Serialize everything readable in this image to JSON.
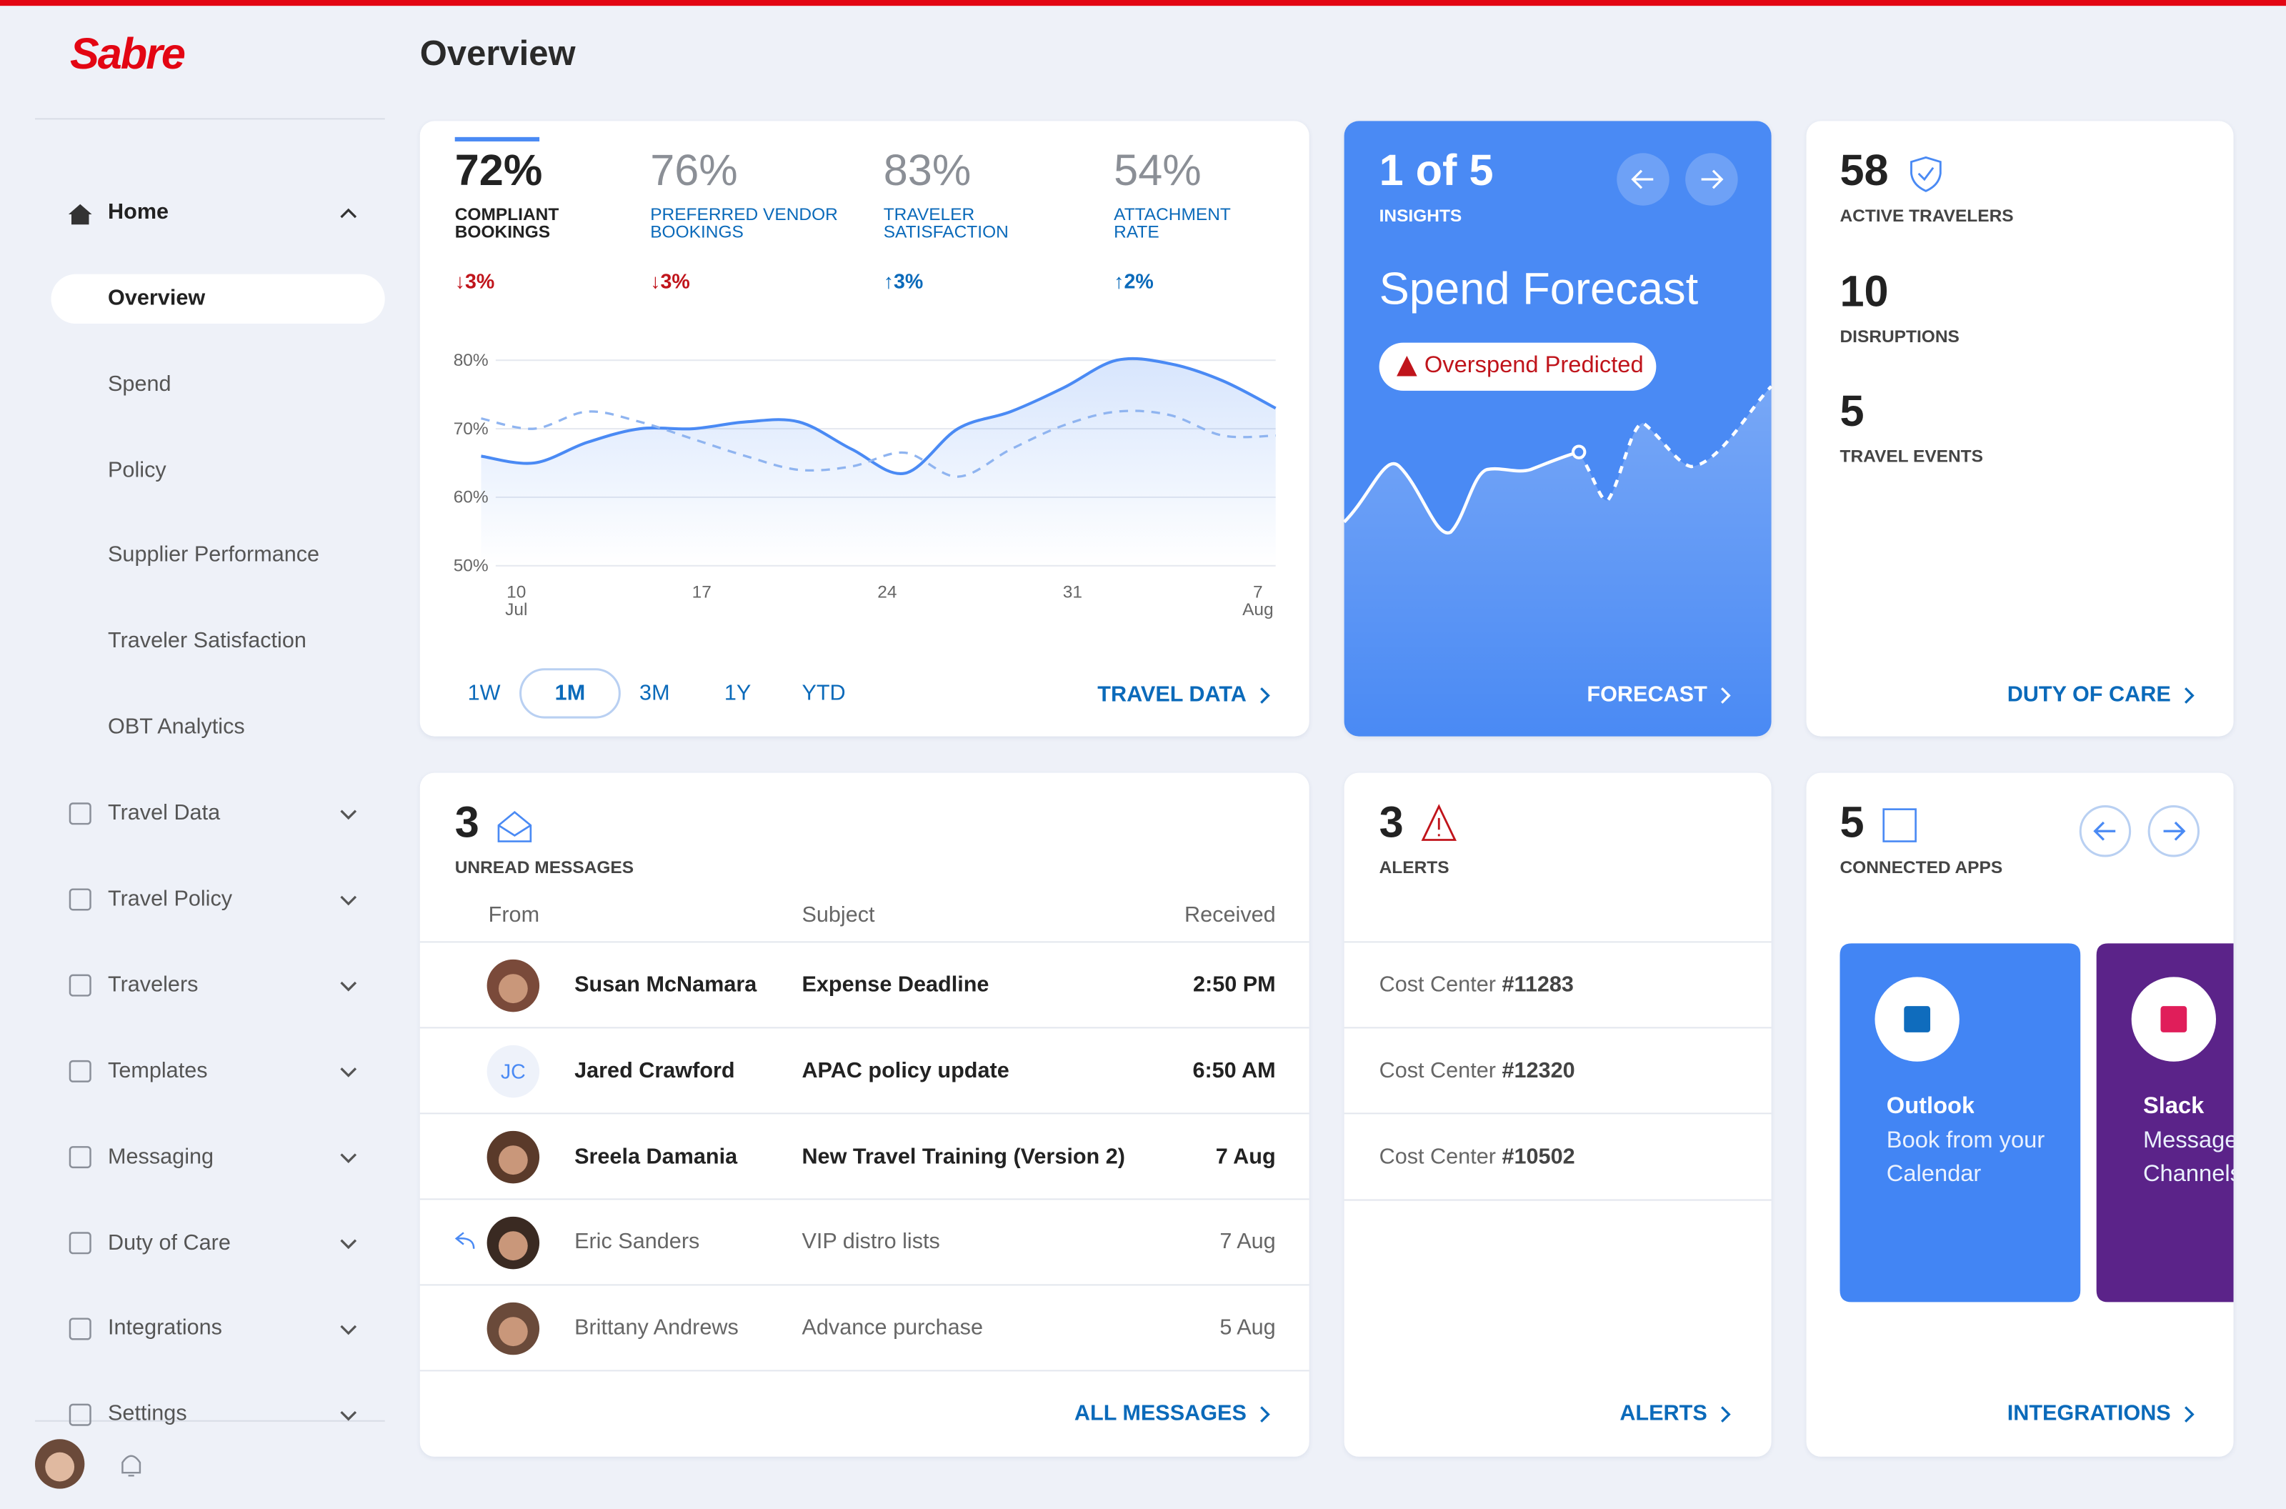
{
  "brand": "Sabre",
  "page_title": "Overview",
  "nav": {
    "home": "Home",
    "home_items": [
      "Overview",
      "Spend",
      "Policy",
      "Supplier Performance",
      "Traveler Satisfaction",
      "OBT Analytics"
    ],
    "active": "Overview",
    "sections": [
      "Travel Data",
      "Travel Policy",
      "Travelers",
      "Templates",
      "Messaging",
      "Duty of Care",
      "Integrations",
      "Settings"
    ]
  },
  "kpis": [
    {
      "value": "72%",
      "label": "COMPLIANT BOOKINGS",
      "change": "↓3%",
      "direction": "down"
    },
    {
      "value": "76%",
      "label": "PREFERRED VENDOR BOOKINGS",
      "change": "↓3%",
      "direction": "down"
    },
    {
      "value": "83%",
      "label": "TRAVELER SATISFACTION",
      "change": "↑3%",
      "direction": "up"
    },
    {
      "value": "54%",
      "label": "ATTACHMENT RATE",
      "change": "↑2%",
      "direction": "up"
    }
  ],
  "chart_data": {
    "type": "line",
    "x": [
      9,
      11,
      13,
      15,
      17,
      19,
      21,
      23,
      25,
      27,
      29,
      31,
      33,
      35,
      37,
      39
    ],
    "series": [
      {
        "color": "#4a8af4",
        "style": "solid",
        "values": [
          66,
          65,
          68,
          70,
          70,
          71,
          71,
          67,
          63.5,
          70,
          72.5,
          76,
          80,
          79.5,
          77,
          73
        ]
      },
      {
        "color": "#8fb4f0",
        "style": "dashed",
        "values": [
          71.5,
          70,
          72.5,
          71,
          68.5,
          66,
          64,
          64.5,
          66.5,
          63,
          67,
          70.5,
          72.5,
          72,
          69,
          69
        ]
      }
    ],
    "xlim": [
      9,
      39
    ],
    "xticks": [
      10,
      17,
      24,
      31,
      {
        "value": 38,
        "label": "7"
      }
    ],
    "x_month_labels": [
      {
        "value": 10,
        "label": "Jul"
      },
      {
        "value": 38,
        "label": "Aug"
      }
    ],
    "ylim": [
      50,
      81.5
    ],
    "yticks": [
      {
        "value": 50,
        "label": "50%"
      },
      {
        "value": 60,
        "label": "60%"
      },
      {
        "value": 70,
        "label": "70%"
      },
      {
        "value": 80,
        "label": "80%"
      }
    ],
    "grid": true
  },
  "ranges": [
    "1W",
    "1M",
    "3M",
    "1Y",
    "YTD"
  ],
  "active_range": "1M",
  "travel_link": "TRAVEL DATA",
  "insights": {
    "count": "1 of 5",
    "label": "INSIGHTS",
    "title": "Spend Forecast",
    "badge": "Overspend Predicted",
    "link": "FORECAST"
  },
  "stats": {
    "items": [
      {
        "value": "58",
        "label": "ACTIVE TRAVELERS"
      },
      {
        "value": "10",
        "label": "DISRUPTIONS"
      },
      {
        "value": "5",
        "label": "TRAVEL EVENTS"
      }
    ],
    "link": "DUTY OF CARE"
  },
  "messages": {
    "count": "3",
    "label": "UNREAD MESSAGES",
    "headers": [
      "From",
      "Subject",
      "Received"
    ],
    "rows": [
      {
        "from": "Susan McNamara",
        "subject": "Expense Deadline",
        "received": "2:50 PM",
        "unread": true
      },
      {
        "from": "Jared Crawford",
        "subject": "APAC policy update",
        "received": "6:50 AM",
        "unread": true,
        "initials": "JC"
      },
      {
        "from": "Sreela Damania",
        "subject": "New Travel Training (Version 2)",
        "received": "7 Aug",
        "unread": true
      },
      {
        "from": "Eric Sanders",
        "subject": "VIP distro lists",
        "received": "7 Aug",
        "unread": false,
        "replied": true
      },
      {
        "from": "Brittany Andrews",
        "subject": "Advance purchase",
        "received": "5 Aug",
        "unread": false
      }
    ],
    "link": "ALL MESSAGES"
  },
  "alerts": {
    "count": "3",
    "label": "ALERTS",
    "items": [
      {
        "prefix": "Cost Center",
        "number": "#11283"
      },
      {
        "prefix": "Cost Center",
        "number": "#12320"
      },
      {
        "prefix": "Cost Center",
        "number": "#10502"
      }
    ],
    "link": "ALERTS"
  },
  "apps": {
    "count": "5",
    "label": "CONNECTED APPS",
    "items": [
      {
        "name": "Outlook",
        "desc": "Book from your Calendar",
        "color": "#4285f4"
      },
      {
        "name": "Slack",
        "desc": "Message Channels",
        "color": "#5b2389"
      }
    ],
    "link": "INTEGRATIONS"
  }
}
